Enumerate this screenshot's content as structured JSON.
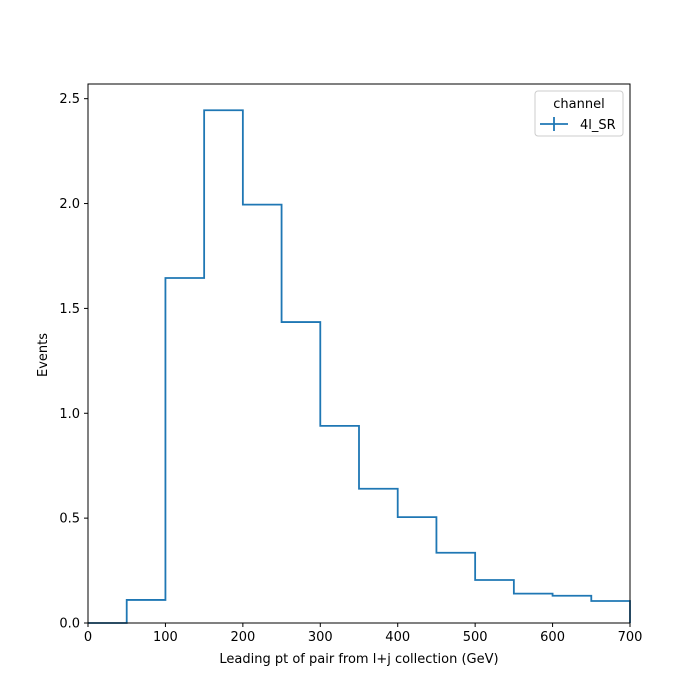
{
  "chart_data": {
    "type": "step",
    "xlabel": "Leading pt of pair from l+j collection (GeV)",
    "ylabel": "Events",
    "xlim": [
      0,
      700
    ],
    "ylim": [
      0,
      2.57
    ],
    "grid": false,
    "bin_edges": [
      0,
      50,
      100,
      150,
      200,
      250,
      300,
      350,
      400,
      450,
      500,
      550,
      600,
      650,
      700
    ],
    "x_ticks": [
      0,
      100,
      200,
      300,
      400,
      500,
      600,
      700
    ],
    "x_tick_labels": [
      "0",
      "100",
      "200",
      "300",
      "400",
      "500",
      "600",
      "700"
    ],
    "y_ticks": [
      0,
      0.5,
      1.0,
      1.5,
      2.0,
      2.5
    ],
    "y_tick_labels": [
      "0.0",
      "0.5",
      "1.0",
      "1.5",
      "2.0",
      "2.5"
    ],
    "legend": {
      "title": "channel",
      "placement": "top-right",
      "entries": [
        "4l_SR"
      ]
    },
    "series": [
      {
        "name": "4l_SR",
        "color": "#1f77b4",
        "values": [
          0.0,
          0.11,
          1.645,
          2.445,
          1.995,
          1.435,
          0.94,
          0.64,
          0.505,
          0.335,
          0.205,
          0.14,
          0.13,
          0.105
        ]
      }
    ]
  }
}
